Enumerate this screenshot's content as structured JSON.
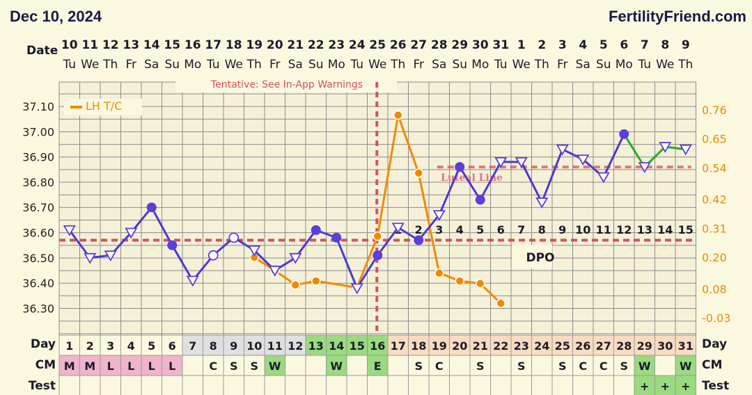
{
  "header": {
    "date": "Dec 10, 2024",
    "site": "FertilityFriend.com"
  },
  "labels": {
    "date_row": "Date",
    "day_row": "Day",
    "day_row_right": "Day",
    "cm_row": "CM",
    "cm_row_right": "CM",
    "test_row": "Test",
    "test_row_right": "Test",
    "tentative_note": "Tentative: See In-App Warnings",
    "legend_lh": "LH T/C",
    "luteal_line": "Luteal Line",
    "dpo": "DPO"
  },
  "colors": {
    "background": "#fbf8e0",
    "grid": "#8a8a8a",
    "temp_line": "#4a3ad0",
    "temp_marker": "#5a40d8",
    "post_line": "#2aaa20",
    "lh_line": "#f08a00",
    "coverline": "#d8505a",
    "cm_pink": "#f0b4cc",
    "cm_green": "#9ada80",
    "day_peach": "#f8dcc0",
    "day_green": "#9ada80",
    "day_gray": "#e0e0e0",
    "test_green": "#9ada80"
  },
  "chart_data": {
    "type": "line",
    "days": [
      {
        "date": "10",
        "dow": "Tu"
      },
      {
        "date": "11",
        "dow": "We"
      },
      {
        "date": "12",
        "dow": "Th"
      },
      {
        "date": "13",
        "dow": "Fr"
      },
      {
        "date": "14",
        "dow": "Sa"
      },
      {
        "date": "15",
        "dow": "Su"
      },
      {
        "date": "16",
        "dow": "Mo"
      },
      {
        "date": "17",
        "dow": "Tu"
      },
      {
        "date": "18",
        "dow": "We"
      },
      {
        "date": "19",
        "dow": "Th"
      },
      {
        "date": "20",
        "dow": "Fr"
      },
      {
        "date": "21",
        "dow": "Sa"
      },
      {
        "date": "22",
        "dow": "Su"
      },
      {
        "date": "23",
        "dow": "Mo"
      },
      {
        "date": "24",
        "dow": "Tu"
      },
      {
        "date": "25",
        "dow": "We"
      },
      {
        "date": "26",
        "dow": "Th"
      },
      {
        "date": "27",
        "dow": "Fr"
      },
      {
        "date": "28",
        "dow": "Sa"
      },
      {
        "date": "29",
        "dow": "Su"
      },
      {
        "date": "30",
        "dow": "Mo"
      },
      {
        "date": "31",
        "dow": "Tu"
      },
      {
        "date": "1",
        "dow": "We"
      },
      {
        "date": "2",
        "dow": "Th"
      },
      {
        "date": "3",
        "dow": "Fr"
      },
      {
        "date": "4",
        "dow": "Sa"
      },
      {
        "date": "5",
        "dow": "Su"
      },
      {
        "date": "6",
        "dow": "Mo"
      },
      {
        "date": "7",
        "dow": "Tu"
      },
      {
        "date": "8",
        "dow": "We"
      },
      {
        "date": "9",
        "dow": "Th"
      }
    ],
    "cycle_days": [
      "1",
      "2",
      "3",
      "4",
      "5",
      "6",
      "7",
      "8",
      "9",
      "10",
      "11",
      "12",
      "13",
      "14",
      "15",
      "16",
      "17",
      "18",
      "19",
      "20",
      "21",
      "22",
      "23",
      "24",
      "25",
      "26",
      "27",
      "28",
      "29",
      "30",
      "31"
    ],
    "temperature": {
      "ylim": [
        36.25,
        37.15
      ],
      "ticks": [
        "37.10",
        "37.00",
        "36.90",
        "36.80",
        "36.70",
        "36.60",
        "36.50",
        "36.40",
        "36.30"
      ],
      "values": [
        36.61,
        36.5,
        36.51,
        36.6,
        36.7,
        36.55,
        36.41,
        36.51,
        36.58,
        36.53,
        36.45,
        36.5,
        36.61,
        36.58,
        36.38,
        36.51,
        36.62,
        36.57,
        36.67,
        36.86,
        36.73,
        36.88,
        36.88,
        36.72,
        36.93,
        36.89,
        36.82,
        36.99,
        36.86,
        36.94,
        36.93
      ],
      "markers": [
        "tri",
        "tri",
        "tri",
        "tri",
        "dot",
        "dot",
        "tri",
        "circle",
        "circle",
        "tri",
        "tri",
        "tri",
        "dot",
        "dot",
        "tri",
        "dot",
        "tri",
        "dot",
        "tri",
        "dot",
        "dot",
        "tri",
        "tri",
        "tri",
        "tri",
        "tri",
        "tri",
        "dot",
        "tri",
        "tri",
        "tri"
      ],
      "coverline": 36.57,
      "luteal_line": 36.86
    },
    "lh": {
      "ticks": [
        "0.76",
        "0.65",
        "0.54",
        "0.42",
        "0.31",
        "0.20",
        "0.08",
        "-0.03"
      ],
      "ylim": [
        -0.0447,
        0.7713
      ],
      "points": [
        {
          "day": 10,
          "value": 0.2
        },
        {
          "day": 11,
          "value": 0.15
        },
        {
          "day": 12,
          "value": 0.095
        },
        {
          "day": 13,
          "value": 0.11
        },
        {
          "day": 15,
          "value": 0.085
        },
        {
          "day": 16,
          "value": 0.28
        },
        {
          "day": 17,
          "value": 0.74
        },
        {
          "day": 18,
          "value": 0.52
        },
        {
          "day": 19,
          "value": 0.14
        },
        {
          "day": 20,
          "value": 0.11
        },
        {
          "day": 21,
          "value": 0.1
        },
        {
          "day": 22,
          "value": 0.025
        }
      ]
    },
    "ovulation_day": 16,
    "dpo_labels": [
      "1",
      "2",
      "3",
      "4",
      "5",
      "6",
      "7",
      "8",
      "9",
      "10",
      "11",
      "12",
      "13",
      "14",
      "15"
    ],
    "cm": [
      "M",
      "M",
      "L",
      "L",
      "L",
      "L",
      "",
      "C",
      "S",
      "S",
      "W",
      "",
      "",
      "W",
      "",
      "E",
      "",
      "S",
      "C",
      "",
      "S",
      "",
      "S",
      "",
      "S",
      "C",
      "C",
      "S",
      "W",
      "",
      "W"
    ],
    "test": [
      "",
      "",
      "",
      "",
      "",
      "",
      "",
      "",
      "",
      "",
      "",
      "",
      "",
      "",
      "",
      "",
      "",
      "",
      "",
      "",
      "",
      "",
      "",
      "",
      "",
      "",
      "",
      "",
      "+",
      "+",
      "+"
    ]
  }
}
